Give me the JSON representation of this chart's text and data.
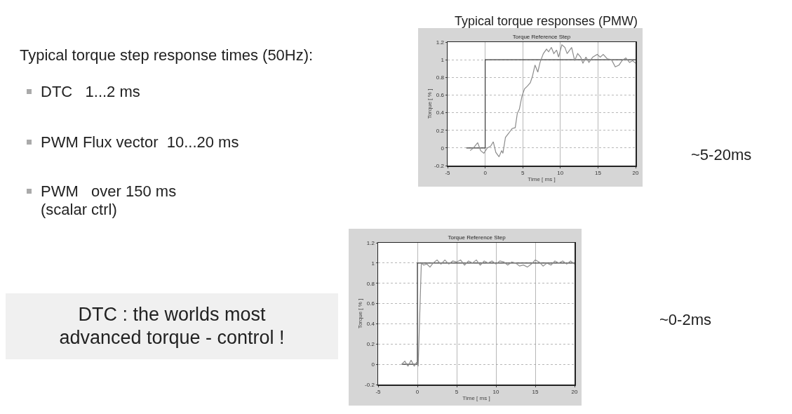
{
  "chart_data": [
    {
      "type": "other",
      "title": "Typical torque step response times (50Hz):",
      "annotations": [
        "DTC   1...2 ms",
        "PWM Flux vector  10...20 ms",
        "PWM   over 150 ms\n(scalar ctrl)",
        "DTC : the worlds most advanced torque - control !"
      ]
    },
    {
      "type": "line",
      "title": "Typical torque responses (PMW)",
      "subtitle": "Torque Reference Step",
      "xlabel": "Time [ ms ]",
      "ylabel": "Torque [ % ]",
      "annotations": [
        "~5-20ms"
      ],
      "series": [
        {
          "color": "#3a3a3a",
          "x": [
            -2.5,
            0,
            0,
            20
          ],
          "values": [
            0,
            0,
            1,
            1
          ]
        },
        {
          "color": "#8c8c8c",
          "x": [
            -2.0,
            -1.56,
            -1.0,
            -0.6,
            -0.17,
            0.28,
            0.73,
            1.08,
            1.42,
            1.84,
            2.19,
            2.36,
            2.7,
            3.16,
            3.58,
            4.0,
            4.27,
            4.55,
            4.9,
            5.24,
            5.6,
            6.0,
            6.28,
            6.63,
            7.0,
            7.3,
            7.74,
            8.16,
            8.44,
            8.8,
            9.13,
            9.5,
            9.76,
            10.2,
            10.6,
            10.9,
            11.5,
            11.9,
            12.3,
            12.7,
            13.0,
            13.4,
            13.8,
            14.3,
            14.9,
            15.3,
            15.7,
            16.25,
            16.8,
            17.3,
            17.8,
            18.2,
            18.7,
            19.2,
            19.6,
            20
          ],
          "values": [
            -0.03,
            0,
            0.06,
            -0.03,
            -0.06,
            0,
            0.02,
            0.07,
            -0.05,
            -0.1,
            -0.03,
            -0.06,
            0.12,
            0.17,
            0.22,
            0.23,
            0.39,
            0.44,
            0.59,
            0.67,
            0.7,
            0.74,
            0.81,
            0.94,
            0.86,
            0.97,
            1.07,
            1.12,
            1.09,
            1.14,
            1.07,
            1.11,
            1.03,
            1.17,
            1.14,
            1.07,
            1.14,
            0.99,
            1.07,
            1.03,
            0.96,
            1.03,
            0.97,
            1.03,
            1.06,
            1.03,
            1.06,
            1.01,
            1.0,
            0.92,
            0.94,
            0.99,
            1.02,
            0.97,
            0.99,
            0.96
          ]
        }
      ],
      "xlim": [
        -5,
        20
      ],
      "xticks": [
        -5,
        0,
        5,
        10,
        15,
        20
      ],
      "ylim": [
        -0.2,
        1.2
      ],
      "yticks": [
        -0.2,
        0,
        0.2,
        0.4,
        0.6,
        0.8,
        1,
        1.2
      ],
      "grid": true,
      "marker": "none",
      "line_style": "solid"
    },
    {
      "type": "line",
      "title": "Torque Reference Step",
      "xlabel": "Time [ ms ]",
      "ylabel": "Torque [ % ]",
      "annotations": [
        "~0-2ms"
      ],
      "series": [
        {
          "color": "#3a3a3a",
          "x": [
            -2,
            0,
            0,
            20
          ],
          "values": [
            0,
            0,
            1,
            1
          ]
        },
        {
          "color": "#8c8c8c",
          "x": [
            -2,
            -1.6,
            -1.2,
            -0.8,
            -0.4,
            -0.1,
            0.1,
            0.5,
            0.8,
            1.2,
            1.6,
            2,
            2.5,
            3,
            3.5,
            4,
            4.5,
            5,
            5.5,
            6,
            6.5,
            7,
            7.5,
            8,
            8.5,
            9,
            9.5,
            10,
            10.5,
            11,
            11.5,
            12,
            12.5,
            13,
            13.5,
            14,
            14.5,
            15,
            15.5,
            16,
            16.5,
            17,
            17.5,
            18,
            18.5,
            19,
            19.5,
            20
          ],
          "values": [
            0,
            0.03,
            -0.02,
            0.04,
            -0.02,
            0.02,
            -0.02,
            1.0,
            0.98,
            0.99,
            0.96,
            1.0,
            1.03,
            0.99,
            1.03,
            0.99,
            1.02,
            1.01,
            1.03,
            0.98,
            1.02,
            1.0,
            1.03,
            0.98,
            1.02,
            1.0,
            1.02,
            0.99,
            1.02,
            1.01,
            0.98,
            1.01,
            1.0,
            0.97,
            0.98,
            0.96,
            0.99,
            1.03,
            1.01,
            0.97,
            1.0,
            0.98,
            1.02,
            1.0,
            1.02,
            0.99,
            1.02,
            0.99
          ]
        }
      ],
      "xlim": [
        -5,
        20
      ],
      "xticks": [
        -5,
        0,
        5,
        10,
        15,
        20
      ],
      "ylim": [
        -0.2,
        1.2
      ],
      "yticks": [
        -0.2,
        0,
        0.2,
        0.4,
        0.6,
        0.8,
        1,
        1.2
      ],
      "grid": true,
      "marker": "none",
      "line_style": "solid"
    }
  ]
}
